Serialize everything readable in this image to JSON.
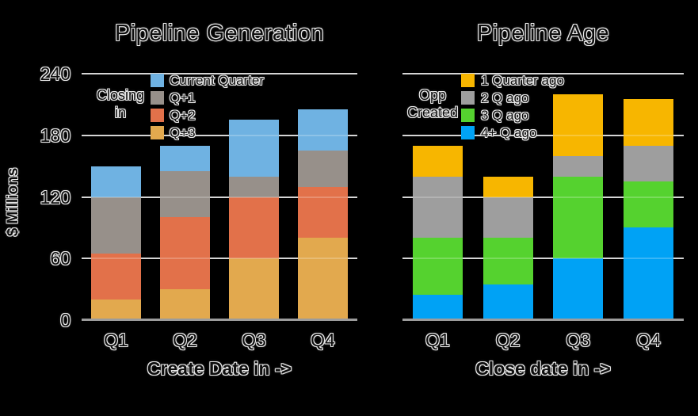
{
  "background_color": "#000000",
  "text_color": "#0e0e0e",
  "grid_color": "#c9c9c9",
  "axis_line_color": "#9c9c9c",
  "chart_data": [
    {
      "type": "bar",
      "stacked": true,
      "title": "Pipeline Generation",
      "xlabel": "Create Date in ->",
      "ylabel": "$ Millions",
      "categories": [
        "Q1",
        "Q2",
        "Q3",
        "Q4"
      ],
      "ylim": [
        0,
        240
      ],
      "yticks": [
        0,
        60,
        120,
        180,
        240
      ],
      "show_ytick_labels": true,
      "grid": true,
      "legend_title_lines": [
        "Closing",
        "in"
      ],
      "legend_position": "upper-center-inside",
      "series": [
        {
          "name": "Q+3",
          "color": "#e2a94e",
          "values": [
            20,
            30,
            60,
            80
          ]
        },
        {
          "name": "Q+2",
          "color": "#e2714a",
          "values": [
            45,
            70,
            60,
            50
          ]
        },
        {
          "name": "Q+1",
          "color": "#97908a",
          "values": [
            55,
            45,
            20,
            35
          ]
        },
        {
          "name": "Current Quarter",
          "color": "#6fb2e2",
          "values": [
            30,
            25,
            55,
            40
          ]
        }
      ],
      "series_note": "series listed bottom-to-top of stack; legend shows top-to-bottom"
    },
    {
      "type": "bar",
      "stacked": true,
      "title": "Pipeline Age",
      "xlabel": "Close date in ->",
      "ylabel": "",
      "categories": [
        "Q1",
        "Q2",
        "Q3",
        "Q4"
      ],
      "ylim": [
        0,
        240
      ],
      "yticks": [
        0,
        60,
        120,
        180,
        240
      ],
      "show_ytick_labels": false,
      "grid": true,
      "legend_title_lines": [
        "Opp",
        "Created"
      ],
      "legend_position": "upper-center-inside",
      "series": [
        {
          "name": "4+ Q ago",
          "color": "#00a2f5",
          "values": [
            25,
            35,
            60,
            90
          ]
        },
        {
          "name": "3 Q ago",
          "color": "#55d22f",
          "values": [
            55,
            45,
            80,
            45
          ]
        },
        {
          "name": "2 Q ago",
          "color": "#9e9e9e",
          "values": [
            60,
            40,
            20,
            35
          ]
        },
        {
          "name": "1 Quarter ago",
          "color": "#f7b600",
          "values": [
            30,
            20,
            60,
            45
          ]
        }
      ],
      "series_note": "series listed bottom-to-top of stack; legend shows top-to-bottom"
    }
  ]
}
